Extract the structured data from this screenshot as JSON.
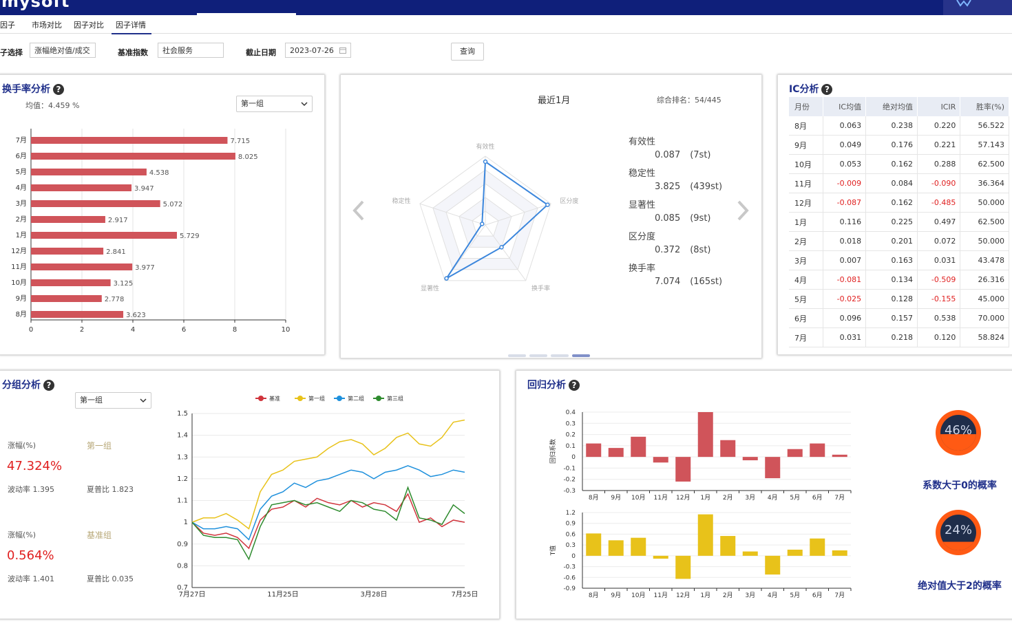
{
  "app": {
    "brand": "mysoft"
  },
  "tabs": [
    "因子",
    "市场对比",
    "因子对比",
    "因子详情"
  ],
  "filters": {
    "factor_label": "子选择",
    "factor_value": "涨幅绝对值/成交",
    "index_label": "基准指数",
    "index_value": "社会服务",
    "date_label": "截止日期",
    "date_value": "2023-07-26",
    "query_button": "查询"
  },
  "turnover": {
    "title": "换手率分析",
    "mean_text": "均值：4.459 %",
    "group_select": "第一组",
    "chart_data": {
      "type": "bar",
      "categories": [
        "7月",
        "6月",
        "5月",
        "4月",
        "3月",
        "2月",
        "1月",
        "12月",
        "11月",
        "10月",
        "9月",
        "8月"
      ],
      "values": [
        7.715,
        8.025,
        4.538,
        3.947,
        5.072,
        2.917,
        5.729,
        2.841,
        3.977,
        3.125,
        2.778,
        3.623
      ],
      "value_labels": [
        "7.715",
        "8.025",
        "4.538",
        "3.947",
        "5.072",
        "2.917",
        "5.729",
        "2.841",
        "3.977",
        "3.125",
        "2.778",
        "3.623"
      ],
      "xlim": [
        0,
        10
      ],
      "xticks": [
        "0",
        "2",
        "4",
        "6",
        "8",
        "10"
      ],
      "color": "#d0545a"
    }
  },
  "radar": {
    "title": "最近1月",
    "rank_text": "综合排名：54/445",
    "chart_data": {
      "type": "radar",
      "axes": [
        "有效性",
        "区分度",
        "换手率",
        "显著性",
        "稳定性"
      ],
      "values": [
        0.92,
        0.95,
        0.4,
        0.96,
        0.05
      ],
      "color": "#3b86dc"
    },
    "metrics": [
      {
        "name": "有效性",
        "value": "0.087",
        "rank": "(7st)"
      },
      {
        "name": "稳定性",
        "value": "3.825",
        "rank": "(439st)"
      },
      {
        "name": "显著性",
        "value": "0.085",
        "rank": "(9st)"
      },
      {
        "name": "区分度",
        "value": "0.372",
        "rank": "(8st)"
      },
      {
        "name": "换手率",
        "value": "7.074",
        "rank": "(165st)"
      }
    ]
  },
  "ic": {
    "title": "IC分析",
    "headers": [
      "月份",
      "IC均值",
      "绝对均值",
      "ICIR",
      "胜率(%)"
    ],
    "rows": [
      [
        "8月",
        "0.063",
        "0.238",
        "0.220",
        "56.522"
      ],
      [
        "9月",
        "0.049",
        "0.176",
        "0.221",
        "57.143"
      ],
      [
        "10月",
        "0.053",
        "0.162",
        "0.288",
        "62.500"
      ],
      [
        "11月",
        "-0.009",
        "0.084",
        "-0.090",
        "36.364"
      ],
      [
        "12月",
        "-0.087",
        "0.162",
        "-0.485",
        "50.000"
      ],
      [
        "1月",
        "0.116",
        "0.225",
        "0.497",
        "62.500"
      ],
      [
        "2月",
        "0.018",
        "0.201",
        "0.072",
        "50.000"
      ],
      [
        "3月",
        "0.007",
        "0.163",
        "0.031",
        "43.478"
      ],
      [
        "4月",
        "-0.081",
        "0.134",
        "-0.509",
        "26.316"
      ],
      [
        "5月",
        "-0.025",
        "0.128",
        "-0.155",
        "45.000"
      ],
      [
        "6月",
        "0.096",
        "0.157",
        "0.538",
        "70.000"
      ],
      [
        "7月",
        "0.031",
        "0.218",
        "0.120",
        "58.824"
      ]
    ]
  },
  "group": {
    "title": "分组分析",
    "group_select": "第一组",
    "block1": {
      "rise_label": "涨幅(%)",
      "group_name": "第一组",
      "rise_value": "47.324%",
      "vol": "波动率 1.395",
      "sharpe": "夏普比 1.823"
    },
    "block2": {
      "rise_label": "涨幅(%)",
      "group_name": "基准组",
      "rise_value": "0.564%",
      "vol": "波动率 1.401",
      "sharpe": "夏普比 0.035"
    },
    "chart_data": {
      "type": "line",
      "legend": [
        "基准",
        "第一组",
        "第二组",
        "第三组"
      ],
      "colors": [
        "#d0343c",
        "#e8c21a",
        "#1e90dc",
        "#2e8b2e"
      ],
      "ylim": [
        0.7,
        1.5
      ],
      "yticks": [
        "1.5",
        "1.4",
        "1.3",
        "1.2",
        "1.1",
        "1",
        "0.9",
        "0.8",
        "0.7"
      ],
      "xticks": [
        "7月27日",
        "11月25日",
        "3月28日",
        "7月25日"
      ],
      "x": [
        0,
        10,
        20,
        30,
        40,
        50,
        60,
        70,
        80,
        90,
        100,
        110,
        120,
        130,
        140,
        150,
        160,
        170,
        180,
        190,
        200,
        210,
        220,
        230,
        240
      ],
      "series": [
        {
          "name": "基准",
          "values": [
            1.0,
            0.95,
            0.94,
            0.95,
            0.93,
            0.88,
            1.01,
            1.06,
            1.07,
            1.1,
            1.07,
            1.11,
            1.09,
            1.08,
            1.1,
            1.07,
            1.09,
            1.08,
            1.05,
            1.13,
            1.0,
            1.02,
            0.98,
            1.01,
            1.0
          ]
        },
        {
          "name": "第一组",
          "values": [
            1.0,
            1.02,
            1.02,
            1.04,
            1.01,
            0.97,
            1.14,
            1.22,
            1.24,
            1.28,
            1.29,
            1.3,
            1.34,
            1.37,
            1.38,
            1.36,
            1.31,
            1.34,
            1.39,
            1.41,
            1.36,
            1.35,
            1.39,
            1.46,
            1.47
          ]
        },
        {
          "name": "第二组",
          "values": [
            1.0,
            0.97,
            0.97,
            0.98,
            0.97,
            0.92,
            1.06,
            1.12,
            1.14,
            1.18,
            1.16,
            1.19,
            1.2,
            1.22,
            1.24,
            1.23,
            1.2,
            1.23,
            1.24,
            1.26,
            1.24,
            1.21,
            1.22,
            1.24,
            1.23
          ]
        },
        {
          "name": "第三组",
          "values": [
            1.0,
            0.94,
            0.93,
            0.93,
            0.92,
            0.83,
            0.98,
            1.08,
            1.09,
            1.1,
            1.08,
            1.09,
            1.07,
            1.05,
            1.1,
            1.09,
            1.06,
            1.05,
            1.01,
            1.16,
            1.02,
            1.01,
            0.99,
            1.08,
            1.04
          ]
        }
      ]
    }
  },
  "regression": {
    "title": "回归分析",
    "months": [
      "8月",
      "9月",
      "10月",
      "11月",
      "12月",
      "1月",
      "2月",
      "3月",
      "4月",
      "5月",
      "6月",
      "7月"
    ],
    "coef_chart": {
      "type": "bar",
      "ylabel": "回归系数",
      "ylim": [
        -0.3,
        0.4
      ],
      "yticks": [
        "0.4",
        "0.3",
        "0.2",
        "0.1",
        "0",
        "-0.1",
        "-0.2",
        "-0.3"
      ],
      "values": [
        0.12,
        0.08,
        0.18,
        -0.05,
        -0.22,
        0.4,
        0.15,
        -0.03,
        -0.19,
        0.07,
        0.12,
        0.02
      ],
      "color": "#d0545a"
    },
    "t_chart": {
      "type": "bar",
      "ylabel": "T值",
      "ylim": [
        -0.9,
        1.2
      ],
      "yticks": [
        "1.2",
        "0.9",
        "0.6",
        "0.3",
        "0",
        "-0.3",
        "-0.6",
        "-0.9"
      ],
      "values": [
        0.62,
        0.43,
        0.5,
        -0.08,
        -0.64,
        1.15,
        0.55,
        0.12,
        -0.52,
        0.17,
        0.48,
        0.15
      ],
      "color": "#e8c21a"
    },
    "prob1": {
      "pct": "46%",
      "label": "系数大于0的概率",
      "value": 0.46
    },
    "prob2": {
      "pct": "24%",
      "label": "绝对值大于2的概率",
      "value": 0.24
    }
  }
}
